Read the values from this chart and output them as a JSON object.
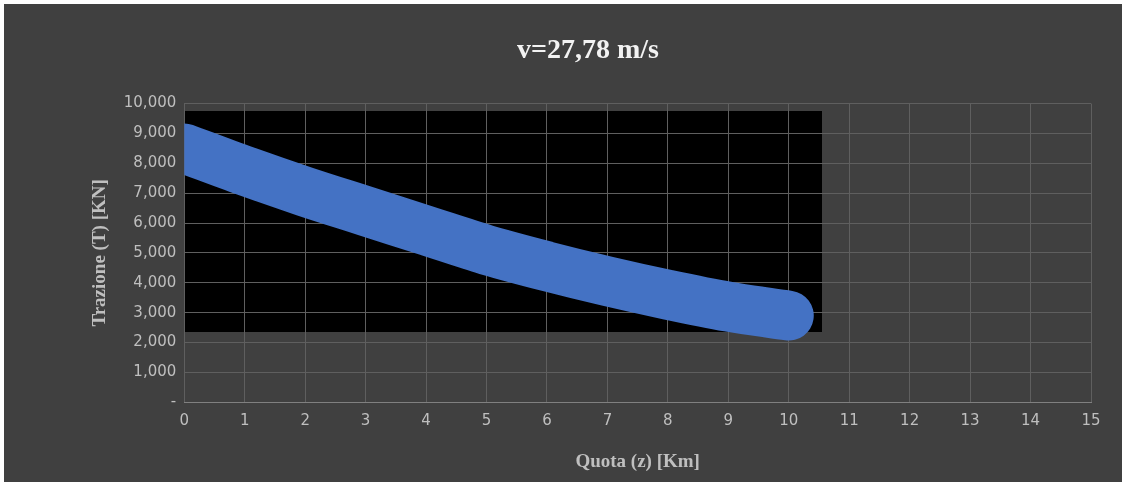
{
  "chart_data": {
    "type": "line",
    "title": "v=27,78 m/s",
    "xlabel": "Quota (z) [Km]",
    "ylabel": "Trazione (T) [KN]",
    "x": [
      0,
      1,
      2,
      3,
      4,
      5,
      6,
      7,
      8,
      9,
      10
    ],
    "series": [
      {
        "color": "#4472c4",
        "values": [
          8500,
          7750,
          7050,
          6400,
          5750,
          5100,
          4550,
          4050,
          3600,
          3200,
          2900
        ]
      }
    ],
    "xlim": [
      0,
      15
    ],
    "xticks": [
      0,
      1,
      2,
      3,
      4,
      5,
      6,
      7,
      8,
      9,
      10,
      11,
      12,
      13,
      14,
      15
    ],
    "ylim": [
      0,
      10000
    ],
    "yticks": [
      {
        "value": 0,
        "label": "-"
      },
      {
        "value": 1000,
        "label": "1,000"
      },
      {
        "value": 2000,
        "label": "2,000"
      },
      {
        "value": 3000,
        "label": "3,000"
      },
      {
        "value": 4000,
        "label": "4,000"
      },
      {
        "value": 5000,
        "label": "5,000"
      },
      {
        "value": 6000,
        "label": "6,000"
      },
      {
        "value": 7000,
        "label": "7,000"
      },
      {
        "value": 8000,
        "label": "8,000"
      },
      {
        "value": 9000,
        "label": "9,000"
      },
      {
        "value": 10000,
        "label": "10,000"
      }
    ],
    "grid": true,
    "legend": false,
    "marker": "none",
    "line_style": "solid"
  }
}
